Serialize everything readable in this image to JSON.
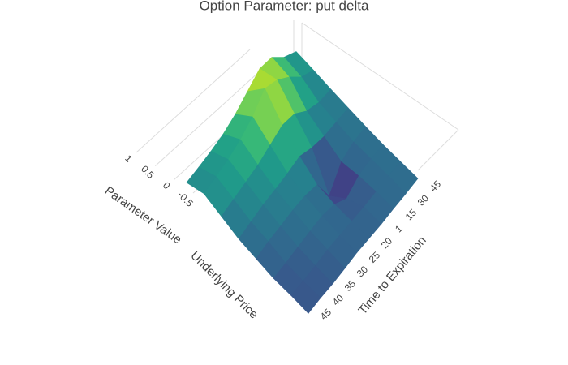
{
  "chart_data": {
    "type": "surface",
    "title": "Option Parameter: put delta",
    "zaxis_title": "Parameter Value",
    "yaxis_title": "Underlying Price",
    "xaxis_title": "Time to Expiration",
    "x": [
      "45",
      "40",
      "35",
      "30",
      "25",
      "20",
      "1",
      "15",
      "30",
      "45"
    ],
    "z": [
      [
        0.1,
        0.12,
        0.15,
        0.2,
        0.3,
        0.45,
        0.6,
        0.55,
        0.3,
        0.15
      ],
      [
        0.2,
        0.25,
        0.3,
        0.4,
        0.55,
        0.8,
        0.7,
        0.5,
        0.25,
        0.12
      ],
      [
        0.1,
        0.15,
        0.2,
        0.25,
        0.35,
        0.45,
        0.4,
        0.2,
        0.1,
        0.08
      ],
      [
        0.0,
        0.05,
        0.1,
        0.12,
        0.15,
        0.2,
        0.1,
        0.05,
        0.05,
        0.05
      ],
      [
        -0.05,
        0,
        0.02,
        0.05,
        0.05,
        0.0,
        -0.45,
        -0.1,
        0.0,
        0.02
      ],
      [
        -0.1,
        -0.08,
        -0.05,
        -0.02,
        0,
        -0.05,
        -0.2,
        -0.05,
        0,
        0
      ],
      [
        -0.1,
        -0.1,
        -0.08,
        -0.05,
        -0.05,
        -0.05,
        -0.05,
        -0.03,
        0,
        0
      ],
      [
        -0.12,
        -0.1,
        -0.1,
        -0.08,
        -0.05,
        -0.05,
        -0.05,
        -0.03,
        -0.02,
        0
      ]
    ],
    "zticks": [
      -0.5,
      0,
      0.5,
      1
    ],
    "colorscale": [
      "#440154",
      "#482878",
      "#3e4989",
      "#31688e",
      "#26828e",
      "#1f9e89",
      "#35b779",
      "#6ece58",
      "#b5de2b",
      "#fde725"
    ],
    "grid": true
  }
}
